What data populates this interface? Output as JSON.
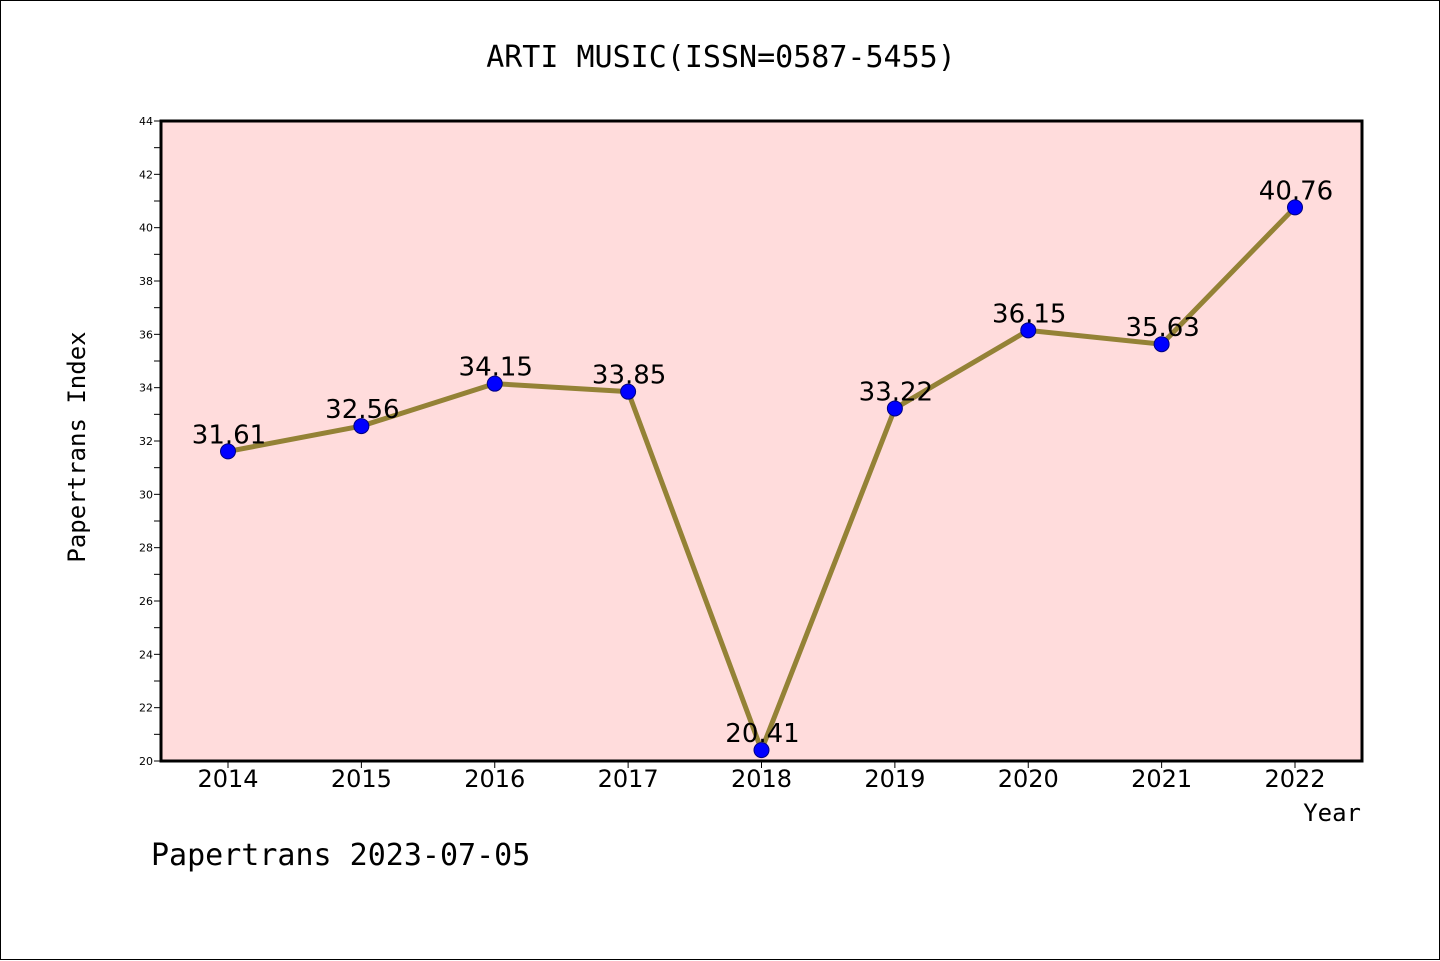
{
  "chart_data": {
    "type": "line",
    "title": "ARTI MUSIC(ISSN=0587-5455)",
    "xlabel": "Year",
    "ylabel": "Papertrans Index",
    "categories": [
      "2014",
      "2015",
      "2016",
      "2017",
      "2018",
      "2019",
      "2020",
      "2021",
      "2022"
    ],
    "values": [
      31.61,
      32.56,
      34.15,
      33.85,
      20.41,
      33.22,
      36.15,
      35.63,
      40.76
    ],
    "data_labels": [
      "31.61",
      "32.56",
      "34.15",
      "33.85",
      "20.41",
      "33.22",
      "36.15",
      "35.63",
      "40.76"
    ],
    "ylim": [
      20,
      44
    ],
    "yticks": [
      "20",
      "22",
      "24",
      "26",
      "28",
      "30",
      "32",
      "34",
      "36",
      "38",
      "40",
      "42",
      "44"
    ],
    "grid": false,
    "legend": "none",
    "footer": "Papertrans 2023-07-05",
    "colors": {
      "plot_background": "#ffdcdc",
      "line": "#948236",
      "marker": "#0000ff",
      "marker_edge": "#000080",
      "axis": "#000000"
    }
  }
}
